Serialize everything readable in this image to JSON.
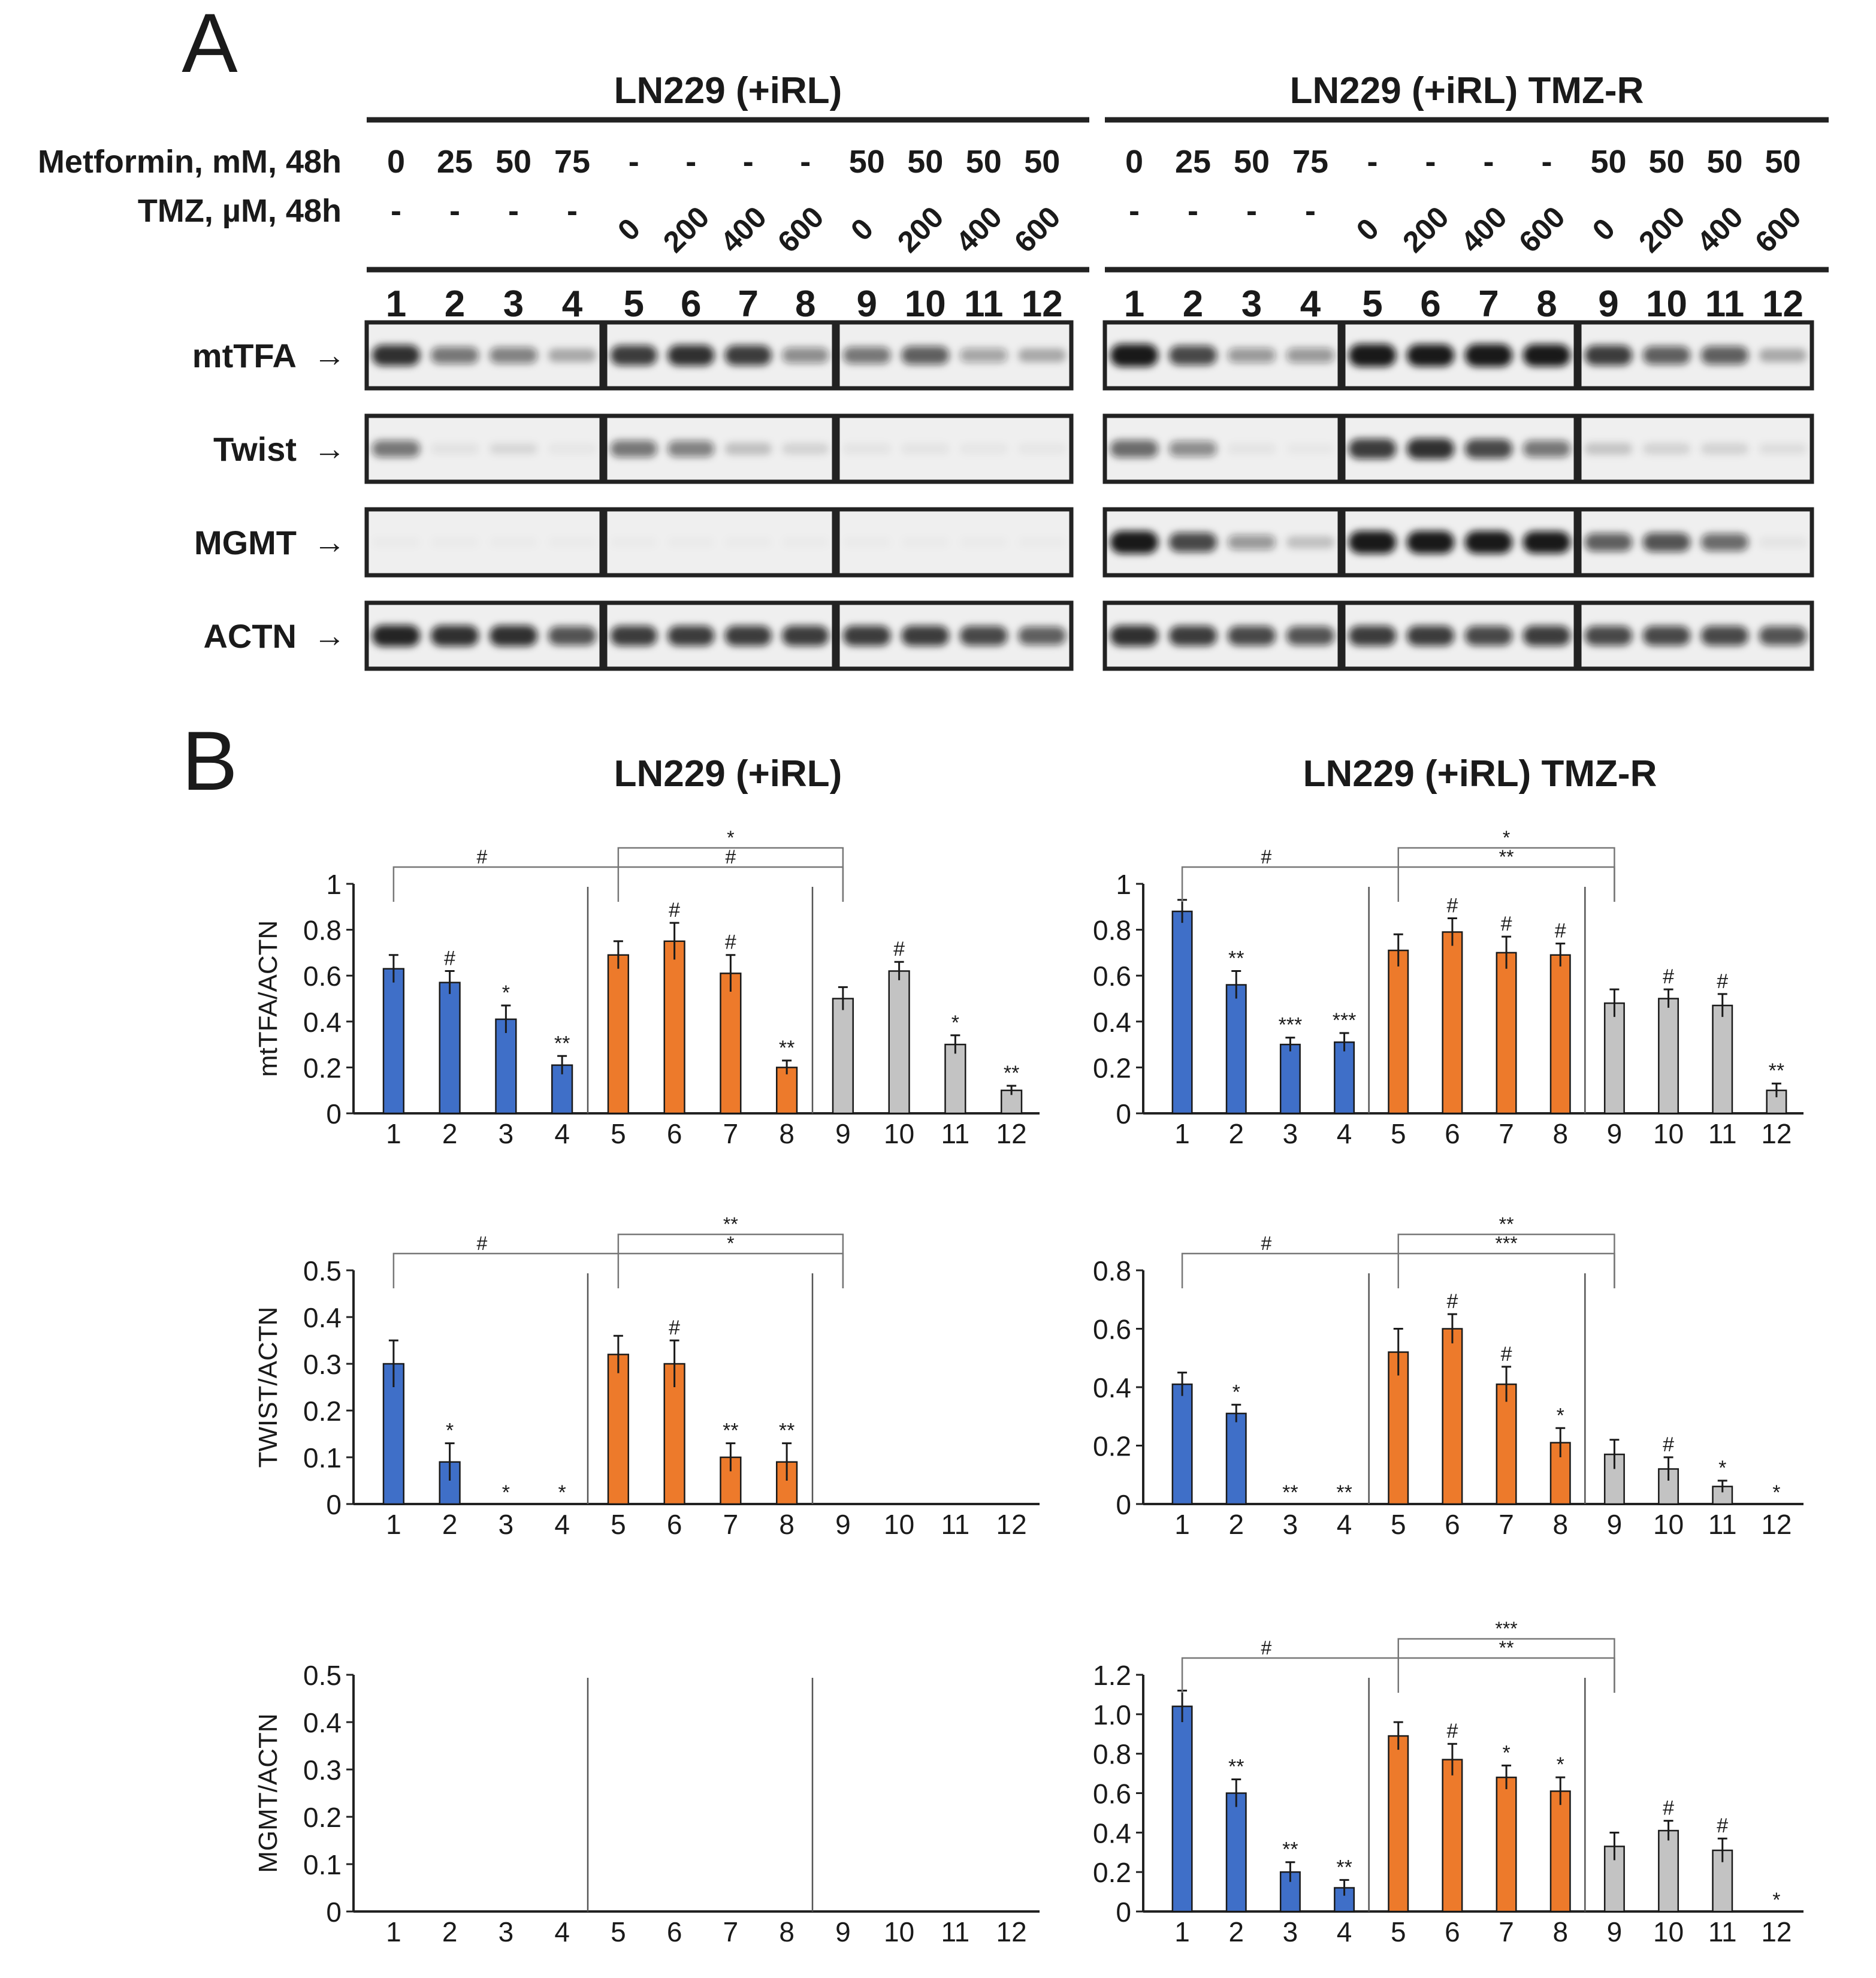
{
  "panel_a": {
    "letter": "A",
    "groups": [
      {
        "title": "LN229 (+iRL)",
        "metformin": [
          "0",
          "25",
          "50",
          "75",
          "-",
          "-",
          "-",
          "-",
          "50",
          "50",
          "50",
          "50"
        ],
        "tmz": [
          "-",
          "-",
          "-",
          "-",
          "0",
          "200",
          "400",
          "600",
          "0",
          "200",
          "400",
          "600"
        ],
        "lanes": [
          "1",
          "2",
          "3",
          "4",
          "5",
          "6",
          "7",
          "8",
          "9",
          "10",
          "11",
          "12"
        ],
        "bands": {
          "mtTFA": [
            0.85,
            0.55,
            0.5,
            0.3,
            0.8,
            0.85,
            0.8,
            0.45,
            0.55,
            0.65,
            0.35,
            0.3
          ],
          "Twist": [
            0.55,
            0.06,
            0.1,
            0.04,
            0.55,
            0.5,
            0.2,
            0.12,
            0.05,
            0.05,
            0.04,
            0.04
          ],
          "MGMT": [
            0.02,
            0.02,
            0.02,
            0.02,
            0.02,
            0.02,
            0.02,
            0.02,
            0.02,
            0.02,
            0.02,
            0.02
          ],
          "ACTN": [
            0.9,
            0.85,
            0.85,
            0.7,
            0.8,
            0.8,
            0.8,
            0.8,
            0.8,
            0.8,
            0.75,
            0.65
          ]
        }
      },
      {
        "title": "LN229 (+iRL) TMZ-R",
        "metformin": [
          "0",
          "25",
          "50",
          "75",
          "-",
          "-",
          "-",
          "-",
          "50",
          "50",
          "50",
          "50"
        ],
        "tmz": [
          "-",
          "-",
          "-",
          "-",
          "0",
          "200",
          "400",
          "600",
          "0",
          "200",
          "400",
          "600"
        ],
        "lanes": [
          "1",
          "2",
          "3",
          "4",
          "5",
          "6",
          "7",
          "8",
          "9",
          "10",
          "11",
          "12"
        ],
        "bands": {
          "mtTFA": [
            1.0,
            0.75,
            0.4,
            0.4,
            1.0,
            0.95,
            1.0,
            0.95,
            0.8,
            0.65,
            0.65,
            0.3
          ],
          "Twist": [
            0.6,
            0.45,
            0.05,
            0.03,
            0.8,
            0.85,
            0.75,
            0.55,
            0.18,
            0.12,
            0.12,
            0.08
          ],
          "MGMT": [
            1.0,
            0.75,
            0.4,
            0.2,
            1.0,
            1.0,
            1.0,
            0.95,
            0.65,
            0.7,
            0.6,
            0.05
          ],
          "ACTN": [
            0.85,
            0.8,
            0.75,
            0.7,
            0.8,
            0.8,
            0.75,
            0.8,
            0.75,
            0.75,
            0.75,
            0.7
          ]
        }
      }
    ],
    "row_labels": {
      "metformin": "Metformin, mM, 48h",
      "tmz": "TMZ, µM, 48h"
    },
    "blot_labels": [
      "mtTFA",
      "Twist",
      "MGMT",
      "ACTN"
    ],
    "arrow": "→"
  },
  "panel_b": {
    "letter": "B",
    "column_titles": [
      "LN229 (+iRL)",
      "LN229 (+iRL) TMZ-R"
    ]
  },
  "colors": {
    "blue": "#3f6fc8",
    "orange": "#ed7a2b",
    "gray": "#c3c3c3",
    "axis": "#222222"
  },
  "chart_data": [
    {
      "type": "bar",
      "title": "",
      "ylabel": "mtTFA/ACTN",
      "xlabel": "",
      "categories": [
        "1",
        "2",
        "3",
        "4",
        "5",
        "6",
        "7",
        "8",
        "9",
        "10",
        "11",
        "12"
      ],
      "values": [
        0.63,
        0.57,
        0.41,
        0.21,
        0.69,
        0.75,
        0.61,
        0.2,
        0.5,
        0.62,
        0.3,
        0.1
      ],
      "errors": [
        0.06,
        0.05,
        0.06,
        0.04,
        0.06,
        0.08,
        0.08,
        0.03,
        0.05,
        0.04,
        0.04,
        0.02
      ],
      "sig": [
        "",
        "#",
        "*",
        "**",
        "",
        "#",
        "#",
        "**",
        "",
        "#",
        "*",
        "**"
      ],
      "ylim": [
        0,
        1
      ],
      "yticks": [
        "0",
        "0.2",
        "0.4",
        "0.6",
        "0.8",
        "1"
      ],
      "brackets": {
        "long": "#",
        "short_top": "*",
        "short_bottom": "#"
      }
    },
    {
      "type": "bar",
      "title": "",
      "ylabel": "",
      "xlabel": "",
      "categories": [
        "1",
        "2",
        "3",
        "4",
        "5",
        "6",
        "7",
        "8",
        "9",
        "10",
        "11",
        "12"
      ],
      "values": [
        0.88,
        0.56,
        0.3,
        0.31,
        0.71,
        0.79,
        0.7,
        0.69,
        0.48,
        0.5,
        0.47,
        0.1
      ],
      "errors": [
        0.05,
        0.06,
        0.03,
        0.04,
        0.07,
        0.06,
        0.07,
        0.05,
        0.06,
        0.04,
        0.05,
        0.03
      ],
      "sig": [
        "",
        "**",
        "***",
        "***",
        "",
        "#",
        "#",
        "#",
        "",
        "#",
        "#",
        "**"
      ],
      "ylim": [
        0,
        1
      ],
      "yticks": [
        "0",
        "0.2",
        "0.4",
        "0.6",
        "0.8",
        "1"
      ],
      "brackets": {
        "long": "#",
        "short_top": "*",
        "short_bottom": "**"
      }
    },
    {
      "type": "bar",
      "title": "",
      "ylabel": "TWIST/ACTN",
      "xlabel": "",
      "categories": [
        "1",
        "2",
        "3",
        "4",
        "5",
        "6",
        "7",
        "8",
        "9",
        "10",
        "11",
        "12"
      ],
      "values": [
        0.3,
        0.09,
        0,
        0,
        0.32,
        0.3,
        0.1,
        0.09,
        0,
        0,
        0,
        0
      ],
      "errors": [
        0.05,
        0.04,
        0,
        0,
        0.04,
        0.05,
        0.03,
        0.04,
        0,
        0,
        0,
        0
      ],
      "sig": [
        "",
        "*",
        "*",
        "*",
        "",
        "#",
        "**",
        "**",
        "",
        "",
        "",
        ""
      ],
      "ylim": [
        0,
        0.5
      ],
      "yticks": [
        "0",
        "0.1",
        "0.2",
        "0.3",
        "0.4",
        "0.5"
      ],
      "brackets": {
        "long": "#",
        "short_top": "**",
        "short_bottom": "*"
      }
    },
    {
      "type": "bar",
      "title": "",
      "ylabel": "",
      "xlabel": "",
      "categories": [
        "1",
        "2",
        "3",
        "4",
        "5",
        "6",
        "7",
        "8",
        "9",
        "10",
        "11",
        "12"
      ],
      "values": [
        0.41,
        0.31,
        0,
        0,
        0.52,
        0.6,
        0.41,
        0.21,
        0.17,
        0.12,
        0.06,
        0
      ],
      "errors": [
        0.04,
        0.03,
        0,
        0,
        0.08,
        0.05,
        0.06,
        0.05,
        0.05,
        0.04,
        0.02,
        0
      ],
      "sig": [
        "",
        "*",
        "**",
        "**",
        "",
        "#",
        "#",
        "*",
        "",
        "#",
        "*",
        "*"
      ],
      "ylim": [
        0,
        0.8
      ],
      "yticks": [
        "0",
        "0.2",
        "0.4",
        "0.6",
        "0.8"
      ],
      "brackets": {
        "long": "#",
        "short_top": "**",
        "short_bottom": "***"
      }
    },
    {
      "type": "bar",
      "title": "",
      "ylabel": "MGMT/ACTN",
      "xlabel": "",
      "categories": [
        "1",
        "2",
        "3",
        "4",
        "5",
        "6",
        "7",
        "8",
        "9",
        "10",
        "11",
        "12"
      ],
      "values": [
        0,
        0,
        0,
        0,
        0,
        0,
        0,
        0,
        0,
        0,
        0,
        0
      ],
      "errors": [
        0,
        0,
        0,
        0,
        0,
        0,
        0,
        0,
        0,
        0,
        0,
        0
      ],
      "sig": [
        "",
        "",
        "",
        "",
        "",
        "",
        "",
        "",
        "",
        "",
        "",
        ""
      ],
      "ylim": [
        0,
        0.5
      ],
      "yticks": [
        "0",
        "0.1",
        "0.2",
        "0.3",
        "0.4",
        "0.5"
      ],
      "brackets": null
    },
    {
      "type": "bar",
      "title": "",
      "ylabel": "",
      "xlabel": "",
      "categories": [
        "1",
        "2",
        "3",
        "4",
        "5",
        "6",
        "7",
        "8",
        "9",
        "10",
        "11",
        "12"
      ],
      "values": [
        1.04,
        0.6,
        0.2,
        0.12,
        0.89,
        0.77,
        0.68,
        0.61,
        0.33,
        0.41,
        0.31,
        0
      ],
      "errors": [
        0.08,
        0.07,
        0.05,
        0.04,
        0.07,
        0.08,
        0.06,
        0.07,
        0.07,
        0.05,
        0.06,
        0
      ],
      "sig": [
        "",
        "**",
        "**",
        "**",
        "",
        "#",
        "*",
        "*",
        "",
        "#",
        "#",
        "*"
      ],
      "ylim": [
        0,
        1.2
      ],
      "yticks": [
        "0",
        "0.2",
        "0.4",
        "0.6",
        "0.8",
        "1.0",
        "1.2"
      ],
      "brackets": {
        "long": "#",
        "short_top": "***",
        "short_bottom": "**"
      }
    }
  ]
}
